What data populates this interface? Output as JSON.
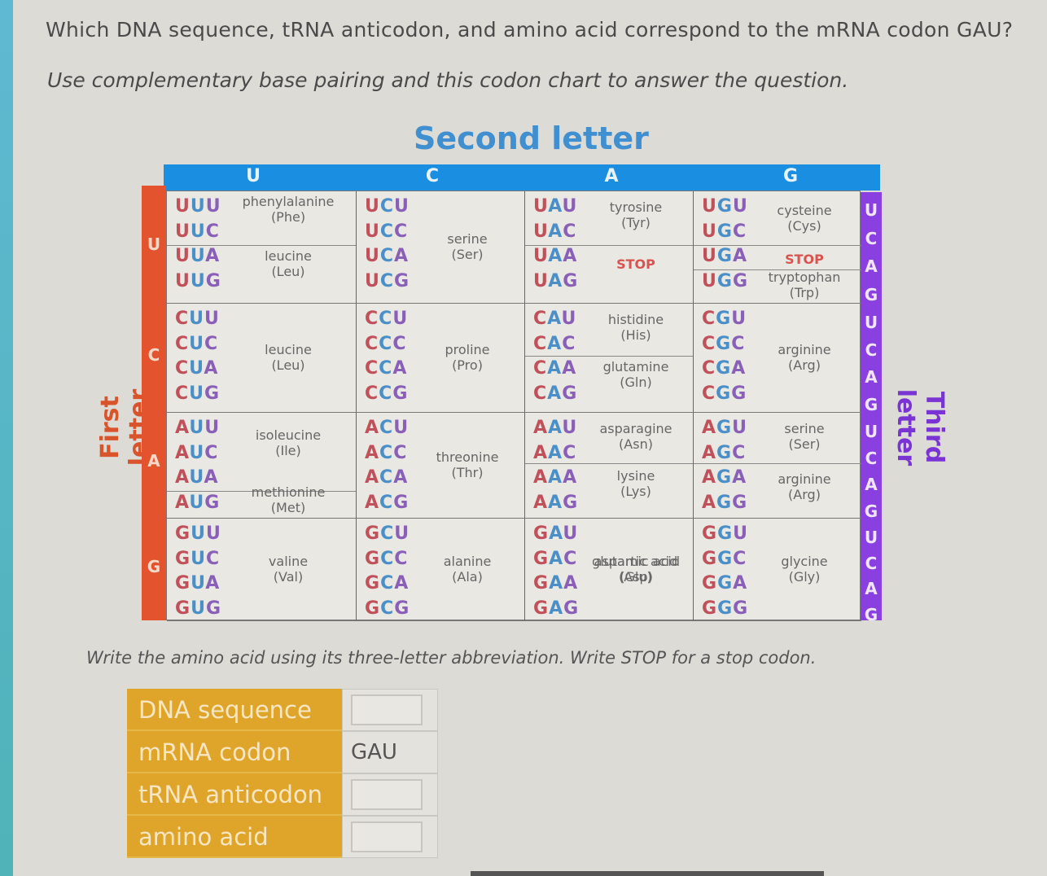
{
  "question": "Which DNA sequence, tRNA anticodon, and amino acid correspond to the mRNA codon GAU?",
  "subtext": "Use complementary base pairing and this codon chart to answer the question.",
  "chart": {
    "second_letter_title": "Second letter",
    "first_letter_title": "First letter",
    "third_letter_title": "Third letter",
    "second_letters": [
      "U",
      "C",
      "A",
      "G"
    ],
    "first_letters": [
      "U",
      "C",
      "A",
      "G"
    ],
    "third_letters": [
      "U",
      "C",
      "A",
      "G",
      "U",
      "C",
      "A",
      "G",
      "U",
      "C",
      "A",
      "G",
      "U",
      "C",
      "A",
      "G"
    ],
    "colors": {
      "header_blue": "#1a8ee0",
      "first_orange": "#e3542e",
      "third_purple": "#8a3fe0",
      "stop_red": "#d9534f",
      "answer_gold": "#dfa52a"
    },
    "rows": [
      [
        {
          "codons": [
            "UUU",
            "UUC",
            "UUA",
            "UUG"
          ],
          "aa": [
            {
              "name": "phenylalanine",
              "abbr": "(Phe)"
            },
            {
              "name": "leucine",
              "abbr": "(Leu)"
            }
          ]
        },
        {
          "codons": [
            "UCU",
            "UCC",
            "UCA",
            "UCG"
          ],
          "aa": [
            {
              "name": "serine",
              "abbr": "(Ser)"
            }
          ]
        },
        {
          "codons": [
            "UAU",
            "UAC",
            "UAA",
            "UAG"
          ],
          "aa": [
            {
              "name": "tyrosine",
              "abbr": "(Tyr)"
            },
            {
              "name": "STOP",
              "abbr": ""
            }
          ]
        },
        {
          "codons": [
            "UGU",
            "UGC",
            "UGA",
            "UGG"
          ],
          "aa": [
            {
              "name": "cysteine",
              "abbr": "(Cys)"
            },
            {
              "name": "STOP",
              "abbr": ""
            },
            {
              "name": "tryptophan",
              "abbr": "(Trp)"
            }
          ]
        }
      ],
      [
        {
          "codons": [
            "CUU",
            "CUC",
            "CUA",
            "CUG"
          ],
          "aa": [
            {
              "name": "leucine",
              "abbr": "(Leu)"
            }
          ]
        },
        {
          "codons": [
            "CCU",
            "CCC",
            "CCA",
            "CCG"
          ],
          "aa": [
            {
              "name": "proline",
              "abbr": "(Pro)"
            }
          ]
        },
        {
          "codons": [
            "CAU",
            "CAC",
            "CAA",
            "CAG"
          ],
          "aa": [
            {
              "name": "histidine",
              "abbr": "(His)"
            },
            {
              "name": "glutamine",
              "abbr": "(Gln)"
            }
          ]
        },
        {
          "codons": [
            "CGU",
            "CGC",
            "CGA",
            "CGG"
          ],
          "aa": [
            {
              "name": "arginine",
              "abbr": "(Arg)"
            }
          ]
        }
      ],
      [
        {
          "codons": [
            "AUU",
            "AUC",
            "AUA",
            "AUG"
          ],
          "aa": [
            {
              "name": "isoleucine",
              "abbr": "(Ile)"
            },
            {
              "name": "methionine",
              "abbr": "(Met)"
            }
          ]
        },
        {
          "codons": [
            "ACU",
            "ACC",
            "ACA",
            "ACG"
          ],
          "aa": [
            {
              "name": "threonine",
              "abbr": "(Thr)"
            }
          ]
        },
        {
          "codons": [
            "AAU",
            "AAC",
            "AAA",
            "AAG"
          ],
          "aa": [
            {
              "name": "asparagine",
              "abbr": "(Asn)"
            },
            {
              "name": "lysine",
              "abbr": "(Lys)"
            }
          ]
        },
        {
          "codons": [
            "AGU",
            "AGC",
            "AGA",
            "AGG"
          ],
          "aa": [
            {
              "name": "serine",
              "abbr": "(Ser)"
            },
            {
              "name": "arginine",
              "abbr": "(Arg)"
            }
          ]
        }
      ],
      [
        {
          "codons": [
            "GUU",
            "GUC",
            "GUA",
            "GUG"
          ],
          "aa": [
            {
              "name": "valine",
              "abbr": "(Val)"
            }
          ]
        },
        {
          "codons": [
            "GCU",
            "GCC",
            "GCA",
            "GCG"
          ],
          "aa": [
            {
              "name": "alanine",
              "abbr": "(Ala)"
            }
          ]
        },
        {
          "codons": [
            "GAU",
            "GAC",
            "GAA",
            "GAG"
          ],
          "aa": [
            {
              "name": "aspartic acid",
              "abbr": "(Asp)"
            },
            {
              "name": "glutamic acid",
              "abbr": "(Glu)"
            }
          ]
        },
        {
          "codons": [
            "GGU",
            "GGC",
            "GGA",
            "GGG"
          ],
          "aa": [
            {
              "name": "glycine",
              "abbr": "(Gly)"
            }
          ]
        }
      ]
    ]
  },
  "instruction": "Write the amino acid using its three-letter abbreviation. Write STOP for a stop codon.",
  "answer_table": {
    "rows": [
      {
        "label": "DNA sequence",
        "value": "",
        "editable": true
      },
      {
        "label": "mRNA codon",
        "value": "GAU",
        "editable": false
      },
      {
        "label": "tRNA anticodon",
        "value": "",
        "editable": true
      },
      {
        "label": "amino acid",
        "value": "",
        "editable": true
      }
    ]
  }
}
